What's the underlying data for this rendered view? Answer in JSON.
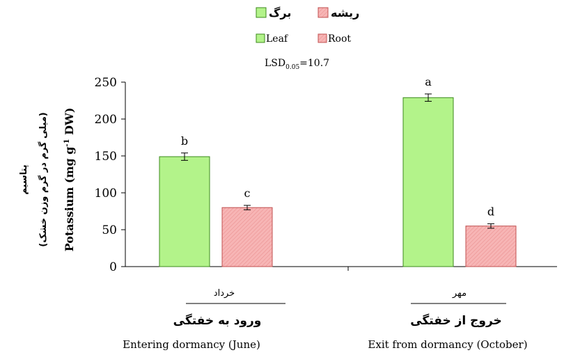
{
  "chart_data": {
    "type": "bar",
    "legend_fa": {
      "leaf": "برگ",
      "root": "ریشه"
    },
    "legend_en": {
      "leaf": "Leaf",
      "root": "Root"
    },
    "lsd": {
      "prefix": "LSD",
      "sub": "0.05",
      "suffix": "=10.7"
    },
    "ylabel_fa_1": "پتاسیم",
    "ylabel_fa_2": "(میلی گرم در گرم وزن خشک)",
    "ylabel_en": "Potassium (mg g",
    "ylabel_en_sup": "-1",
    "ylabel_en_end": " DW)",
    "ylim": [
      0,
      250
    ],
    "yticks": [
      0,
      50,
      100,
      150,
      200,
      250
    ],
    "categories": [
      {
        "month_fa": "خرداد",
        "title_fa": "ورود به خفتگی",
        "title_en": "Entering dormancy (June)"
      },
      {
        "month_fa": "مهر",
        "title_fa": "خروج از خفتگی",
        "title_en": "Exit from dormancy (October)"
      }
    ],
    "series": [
      {
        "name": "Leaf",
        "values": [
          149,
          229
        ],
        "errors": [
          5,
          5
        ],
        "letters": [
          "b",
          "a"
        ],
        "color": "#b3f38a",
        "stroke": "#3c8a1e"
      },
      {
        "name": "Root",
        "values": [
          80,
          55
        ],
        "errors": [
          3,
          3
        ],
        "letters": [
          "c",
          "d"
        ],
        "color": "#f7b5b5",
        "stroke": "#c05050"
      }
    ],
    "grid": false,
    "legend_position": "top-center"
  }
}
